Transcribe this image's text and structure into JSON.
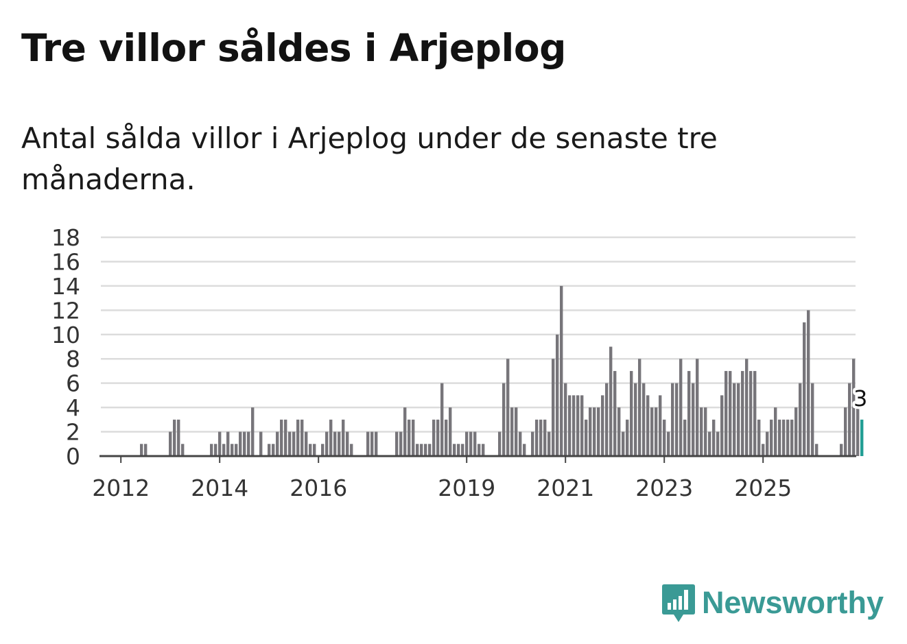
{
  "title": "Tre villor såldes i Arjeplog",
  "subtitle": "Antal sålda villor i Arjeplog under de senaste tre månaderna.",
  "brand": {
    "name": "Newsworthy",
    "icon": "bar-chart-speech-bubble-icon",
    "color": "#3a9a95"
  },
  "chart_data": {
    "type": "bar",
    "x_ticks": [
      "2012",
      "2014",
      "2016",
      "2019",
      "2021",
      "2023",
      "2025"
    ],
    "y_ticks": [
      0,
      2,
      4,
      6,
      8,
      10,
      12,
      14,
      16,
      18
    ],
    "ylim": [
      0,
      18
    ],
    "grid": true,
    "bar_color": "#77757a",
    "highlight_color": "#229e94",
    "highlight_label": "3",
    "period": "month",
    "first_month": "2011-09",
    "values": [
      0,
      0,
      0,
      0,
      0,
      0,
      0,
      0,
      0,
      1,
      1,
      0,
      0,
      0,
      0,
      0,
      2,
      3,
      3,
      1,
      0,
      0,
      0,
      0,
      0,
      0,
      1,
      1,
      2,
      1,
      2,
      1,
      1,
      2,
      2,
      2,
      4,
      0,
      2,
      0,
      1,
      1,
      2,
      3,
      3,
      2,
      2,
      3,
      3,
      2,
      1,
      1,
      0,
      1,
      2,
      3,
      2,
      2,
      3,
      2,
      1,
      0,
      0,
      0,
      2,
      2,
      2,
      0,
      0,
      0,
      0,
      2,
      2,
      4,
      3,
      3,
      1,
      1,
      1,
      1,
      3,
      3,
      6,
      3,
      4,
      1,
      1,
      1,
      2,
      2,
      2,
      1,
      1,
      0,
      0,
      0,
      2,
      6,
      8,
      4,
      4,
      2,
      1,
      0,
      2,
      3,
      3,
      3,
      2,
      8,
      10,
      14,
      6,
      5,
      5,
      5,
      5,
      3,
      4,
      4,
      4,
      5,
      6,
      9,
      7,
      4,
      2,
      3,
      7,
      6,
      8,
      6,
      5,
      4,
      4,
      5,
      3,
      2,
      6,
      6,
      8,
      3,
      7,
      6,
      8,
      4,
      4,
      2,
      3,
      2,
      5,
      7,
      7,
      6,
      6,
      7,
      8,
      7,
      7,
      3,
      1,
      2,
      3,
      4,
      3,
      3,
      3,
      3,
      4,
      6,
      11,
      12,
      6,
      1,
      0,
      0,
      0,
      0,
      0,
      1,
      4,
      6,
      8,
      4,
      3
    ]
  }
}
